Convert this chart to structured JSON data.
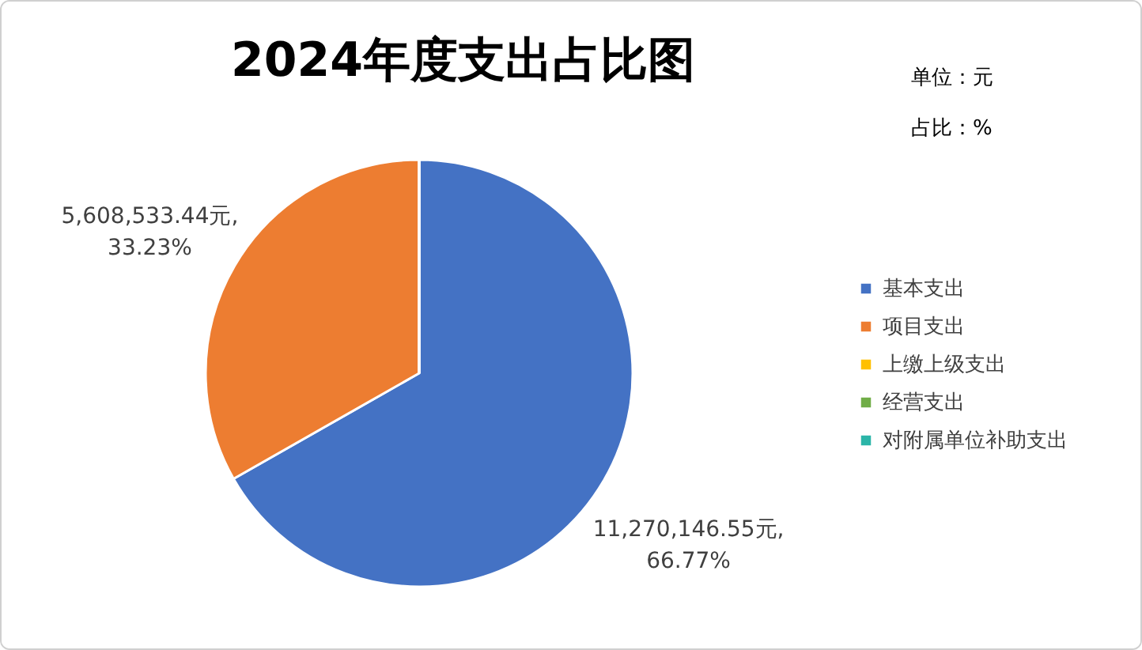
{
  "chart_data": {
    "type": "pie",
    "title": "2024年度支出占比图",
    "categories": [
      "基本支出",
      "项目支出",
      "上缴上级支出",
      "经营支出",
      "对附属单位补助支出"
    ],
    "values": [
      11270146.55,
      5608533.44,
      0,
      0,
      0
    ],
    "colors": [
      "#4472c4",
      "#ed7d31",
      "#ffc000",
      "#70ad47",
      "#2bb5a8"
    ],
    "value_labels": [
      "11,270,146.55元, 66.77%",
      "5,608,533.44元, 33.23%",
      null,
      null,
      null
    ],
    "annotations": [
      "单位：元",
      "占比：%"
    ],
    "legend": "right"
  }
}
